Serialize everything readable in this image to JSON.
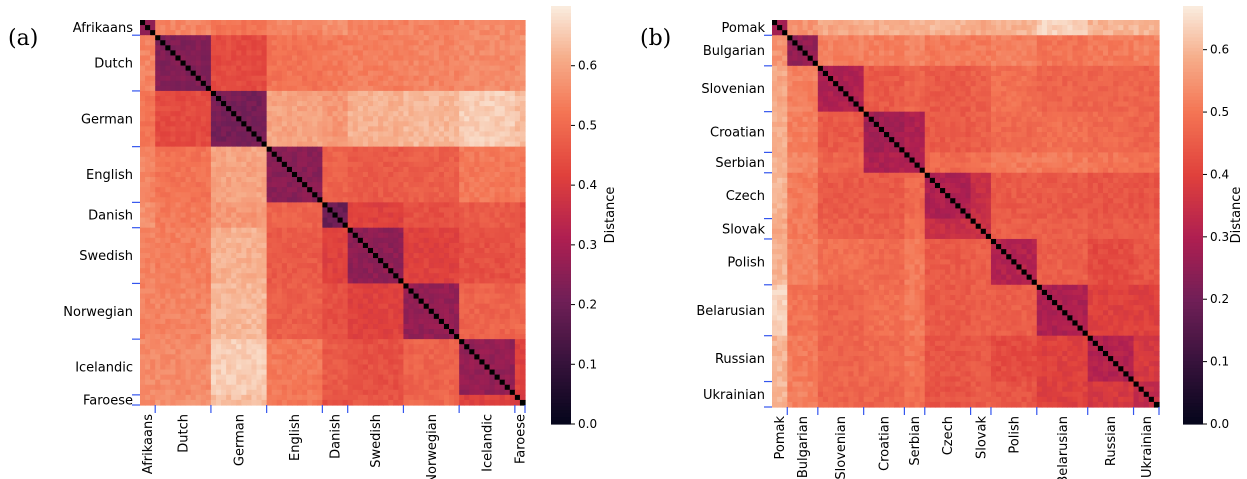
{
  "chart_data": [
    {
      "type": "heatmap",
      "panel_label": "(a)",
      "groups": [
        "Afrikaans",
        "Dutch",
        "German",
        "English",
        "Danish",
        "Swedish",
        "Norwegian",
        "Icelandic",
        "Faroese"
      ],
      "group_sizes": [
        3,
        11,
        11,
        11,
        5,
        11,
        11,
        11,
        2
      ],
      "within_group_distance": [
        0.28,
        0.24,
        0.22,
        0.25,
        0.2,
        0.26,
        0.27,
        0.27,
        0.38
      ],
      "between_group_distance": [
        [
          0.28,
          0.55,
          0.52,
          0.55,
          0.57,
          0.55,
          0.55,
          0.56,
          0.56
        ],
        [
          0.55,
          0.24,
          0.44,
          0.52,
          0.53,
          0.54,
          0.55,
          0.56,
          0.57
        ],
        [
          0.52,
          0.44,
          0.22,
          0.6,
          0.58,
          0.62,
          0.63,
          0.66,
          0.64
        ],
        [
          0.55,
          0.52,
          0.6,
          0.25,
          0.49,
          0.47,
          0.48,
          0.53,
          0.53
        ],
        [
          0.57,
          0.53,
          0.58,
          0.49,
          0.2,
          0.42,
          0.45,
          0.47,
          0.45
        ],
        [
          0.55,
          0.54,
          0.62,
          0.47,
          0.42,
          0.26,
          0.42,
          0.45,
          0.46
        ],
        [
          0.55,
          0.55,
          0.63,
          0.48,
          0.45,
          0.42,
          0.27,
          0.49,
          0.5
        ],
        [
          0.56,
          0.56,
          0.66,
          0.53,
          0.47,
          0.45,
          0.49,
          0.27,
          0.42
        ],
        [
          0.56,
          0.57,
          0.64,
          0.53,
          0.45,
          0.46,
          0.5,
          0.42,
          0.38
        ]
      ],
      "colorbar": {
        "label": "Distance",
        "range": [
          0.0,
          0.7
        ],
        "ticks": [
          "0.0",
          "0.1",
          "0.2",
          "0.3",
          "0.4",
          "0.5",
          "0.6"
        ]
      }
    },
    {
      "type": "heatmap",
      "panel_label": "(b)",
      "groups": [
        "Pomak",
        "Bulgarian",
        "Slovenian",
        "Croatian",
        "Serbian",
        "Czech",
        "Slovak",
        "Polish",
        "Belarusian",
        "Russian",
        "Ukrainian"
      ],
      "group_sizes": [
        3,
        6,
        9,
        8,
        4,
        9,
        4,
        9,
        10,
        9,
        5
      ],
      "within_group_distance": [
        0.3,
        0.26,
        0.3,
        0.28,
        0.3,
        0.3,
        0.35,
        0.31,
        0.3,
        0.31,
        0.34
      ],
      "between_group_distance": [
        [
          0.3,
          0.55,
          0.58,
          0.59,
          0.59,
          0.6,
          0.58,
          0.6,
          0.64,
          0.6,
          0.6
        ],
        [
          0.55,
          0.26,
          0.52,
          0.52,
          0.53,
          0.51,
          0.51,
          0.52,
          0.5,
          0.51,
          0.52
        ],
        [
          0.58,
          0.52,
          0.3,
          0.45,
          0.47,
          0.45,
          0.46,
          0.49,
          0.47,
          0.47,
          0.47
        ],
        [
          0.59,
          0.52,
          0.45,
          0.28,
          0.3,
          0.45,
          0.46,
          0.48,
          0.49,
          0.48,
          0.47
        ],
        [
          0.59,
          0.53,
          0.47,
          0.3,
          0.3,
          0.48,
          0.49,
          0.51,
          0.51,
          0.5,
          0.49
        ],
        [
          0.6,
          0.51,
          0.45,
          0.45,
          0.48,
          0.3,
          0.35,
          0.45,
          0.45,
          0.44,
          0.44
        ],
        [
          0.58,
          0.51,
          0.46,
          0.46,
          0.49,
          0.35,
          0.35,
          0.46,
          0.46,
          0.45,
          0.45
        ],
        [
          0.6,
          0.52,
          0.49,
          0.48,
          0.51,
          0.45,
          0.46,
          0.31,
          0.46,
          0.42,
          0.44
        ],
        [
          0.64,
          0.5,
          0.47,
          0.49,
          0.51,
          0.45,
          0.46,
          0.46,
          0.3,
          0.4,
          0.4
        ],
        [
          0.6,
          0.51,
          0.47,
          0.48,
          0.5,
          0.44,
          0.45,
          0.42,
          0.4,
          0.31,
          0.38
        ],
        [
          0.6,
          0.52,
          0.47,
          0.47,
          0.49,
          0.44,
          0.45,
          0.44,
          0.4,
          0.38,
          0.34
        ]
      ],
      "colorbar": {
        "label": "Distance",
        "range": [
          0.0,
          0.67
        ],
        "ticks": [
          "0.0",
          "0.1",
          "0.2",
          "0.3",
          "0.4",
          "0.5",
          "0.6"
        ]
      }
    }
  ]
}
